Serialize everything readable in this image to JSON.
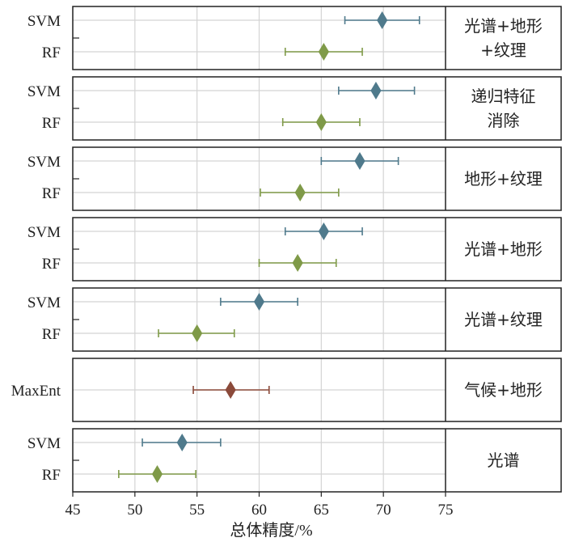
{
  "chart_data": {
    "type": "scatter",
    "xlabel": "总体精度/%",
    "xlim": [
      45,
      75
    ],
    "xticks": [
      45,
      50,
      55,
      60,
      65,
      70,
      75
    ],
    "grid": true,
    "colors": {
      "SVM": "#4f7a8c",
      "RF": "#7f9a48",
      "MaxEnt": "#8b4a3a"
    },
    "panels": [
      {
        "group": "光谱+地形\n+纹理",
        "rows": [
          {
            "model": "SVM",
            "value": 69.9,
            "low": 66.9,
            "high": 72.9
          },
          {
            "model": "RF",
            "value": 65.2,
            "low": 62.1,
            "high": 68.3
          }
        ]
      },
      {
        "group": "递归特征\n消除",
        "rows": [
          {
            "model": "SVM",
            "value": 69.4,
            "low": 66.4,
            "high": 72.5
          },
          {
            "model": "RF",
            "value": 65.0,
            "low": 61.9,
            "high": 68.1
          }
        ]
      },
      {
        "group": "地形+纹理",
        "rows": [
          {
            "model": "SVM",
            "value": 68.1,
            "low": 65.0,
            "high": 71.2
          },
          {
            "model": "RF",
            "value": 63.3,
            "low": 60.1,
            "high": 66.4
          }
        ]
      },
      {
        "group": "光谱+地形",
        "rows": [
          {
            "model": "SVM",
            "value": 65.2,
            "low": 62.1,
            "high": 68.3
          },
          {
            "model": "RF",
            "value": 63.1,
            "low": 60.0,
            "high": 66.2
          }
        ]
      },
      {
        "group": "光谱+纹理",
        "rows": [
          {
            "model": "SVM",
            "value": 60.0,
            "low": 56.9,
            "high": 63.1
          },
          {
            "model": "RF",
            "value": 55.0,
            "low": 51.9,
            "high": 58.0
          }
        ]
      },
      {
        "group": "气候+地形",
        "rows": [
          {
            "model": "MaxEnt",
            "value": 57.7,
            "low": 54.7,
            "high": 60.8
          }
        ]
      },
      {
        "group": "光谱",
        "rows": [
          {
            "model": "SVM",
            "value": 53.8,
            "low": 50.6,
            "high": 56.9
          },
          {
            "model": "RF",
            "value": 51.8,
            "low": 48.7,
            "high": 54.9
          }
        ]
      }
    ]
  }
}
